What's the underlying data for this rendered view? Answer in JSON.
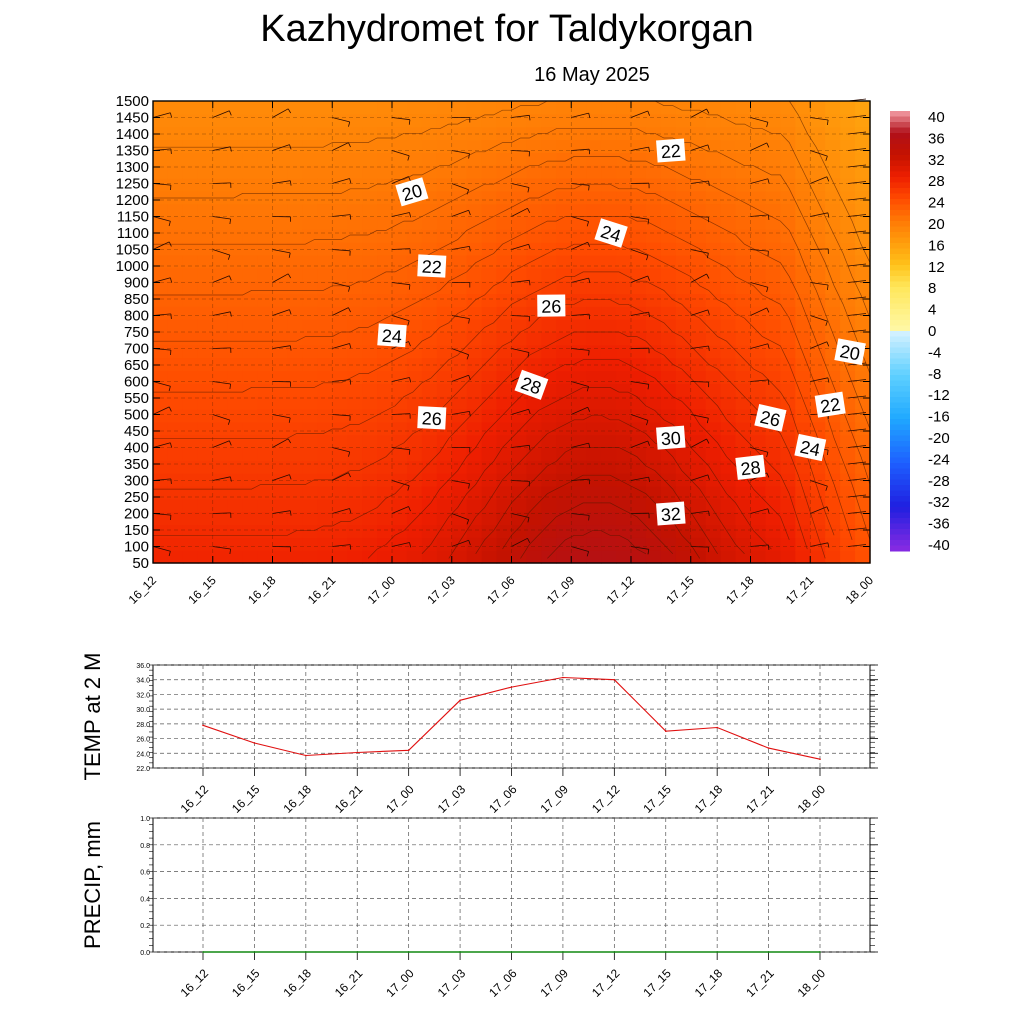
{
  "header": {
    "title": "Kazhydromet  for Taldykorgan",
    "subtitle": "16 May 2025"
  },
  "chart_data": [
    {
      "type": "heatmap",
      "x_ticks": [
        "16_12",
        "16_15",
        "16_18",
        "16_21",
        "17_00",
        "17_03",
        "17_06",
        "17_09",
        "17_12",
        "17_15",
        "17_18",
        "17_21",
        "18_00"
      ],
      "y_ticks": [
        50,
        100,
        150,
        200,
        250,
        300,
        350,
        400,
        450,
        500,
        550,
        600,
        650,
        700,
        750,
        800,
        850,
        900,
        1000,
        1050,
        1100,
        1150,
        1200,
        1250,
        1300,
        1350,
        1400,
        1450,
        1500
      ],
      "ylim": [
        50,
        1500
      ],
      "colorbar": {
        "labels": [
          40,
          36,
          32,
          28,
          24,
          20,
          16,
          12,
          8,
          4,
          0,
          -4,
          -8,
          -12,
          -16,
          -20,
          -24,
          -28,
          -32,
          -36,
          -40
        ],
        "range": [
          -40,
          40
        ]
      },
      "contour_labels": [
        {
          "value": "20",
          "x": "17_01",
          "y": 1225
        },
        {
          "value": "22",
          "x": "17_14",
          "y": 1350
        },
        {
          "value": "24",
          "x": "17_11",
          "y": 1100
        },
        {
          "value": "22",
          "x": "17_02",
          "y": 1000
        },
        {
          "value": "26",
          "x": "17_08",
          "y": 830
        },
        {
          "value": "24",
          "x": "17_00",
          "y": 740
        },
        {
          "value": "28",
          "x": "17_07",
          "y": 590
        },
        {
          "value": "26",
          "x": "17_02",
          "y": 490
        },
        {
          "value": "30",
          "x": "17_14",
          "y": 430
        },
        {
          "value": "26",
          "x": "17_19",
          "y": 490
        },
        {
          "value": "22",
          "x": "17_22",
          "y": 530
        },
        {
          "value": "20",
          "x": "17_23",
          "y": 690
        },
        {
          "value": "24",
          "x": "17_21",
          "y": 400
        },
        {
          "value": "28",
          "x": "17_18",
          "y": 340
        },
        {
          "value": "32",
          "x": "17_14",
          "y": 200
        }
      ]
    },
    {
      "type": "line",
      "ylabel": "TEMP at 2 M",
      "ylim": [
        22.0,
        36.0
      ],
      "y_ticks": [
        "36.0",
        "34.0",
        "32.0",
        "30.0",
        "28.0",
        "26.0",
        "24.0",
        "22.0"
      ],
      "categories": [
        "16_12",
        "16_15",
        "16_18",
        "16_21",
        "17_00",
        "17_03",
        "17_06",
        "17_09",
        "17_12",
        "17_15",
        "17_18",
        "17_21",
        "18_00"
      ],
      "series": [
        {
          "values": [
            27.8,
            25.4,
            23.7,
            24.1,
            24.4,
            31.2,
            33.0,
            34.3,
            34.0,
            27.0,
            27.5,
            24.7,
            23.2
          ],
          "color": "#e01010"
        }
      ]
    },
    {
      "type": "line",
      "ylabel": "PRECIP, mm",
      "ylim": [
        0.0,
        1.0
      ],
      "y_ticks": [
        "1.0",
        "0.8",
        "0.6",
        "0.4",
        "0.2",
        "0.0"
      ],
      "categories": [
        "16_12",
        "16_15",
        "16_18",
        "16_21",
        "17_00",
        "17_03",
        "17_06",
        "17_09",
        "17_12",
        "17_15",
        "17_18",
        "17_21",
        "18_00"
      ],
      "series": [
        {
          "values": [
            0,
            0,
            0,
            0,
            0,
            0,
            0,
            0,
            0,
            0,
            0,
            0,
            0
          ],
          "color": "#118811"
        }
      ]
    }
  ]
}
